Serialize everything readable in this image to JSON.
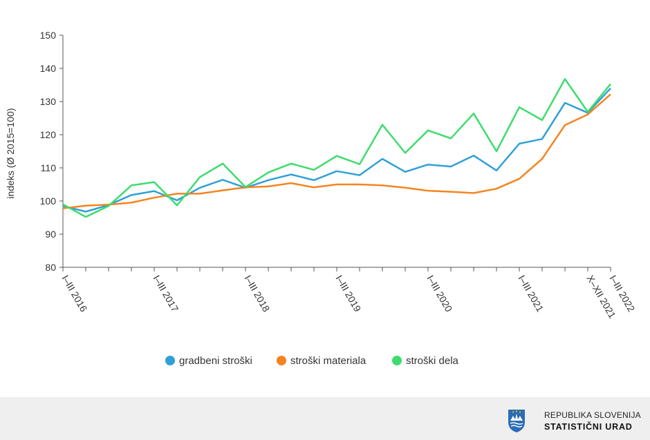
{
  "chart_data": {
    "type": "line",
    "ylabel": "indeks (Ø 2015=100)",
    "ylim": [
      80,
      150
    ],
    "yticks": [
      80,
      90,
      100,
      110,
      120,
      130,
      140,
      150
    ],
    "x_count": 25,
    "x_labels": [
      {
        "index": 0,
        "label": "I–III 2016"
      },
      {
        "index": 4,
        "label": "I–III 2017"
      },
      {
        "index": 8,
        "label": "I–III 2018"
      },
      {
        "index": 12,
        "label": "I–III 2019"
      },
      {
        "index": 16,
        "label": "I–III 2020"
      },
      {
        "index": 20,
        "label": "I–III 2021"
      },
      {
        "index": 23,
        "label": "X–XII 2021"
      },
      {
        "index": 24,
        "label": "I–III 2022"
      }
    ],
    "series": [
      {
        "name": "gradbeni stroški",
        "color": "#2ea0d6",
        "values": [
          98.5,
          96.8,
          98.8,
          101.8,
          103.0,
          100.2,
          104.0,
          106.4,
          104.0,
          106.3,
          108.0,
          106.3,
          109.0,
          107.8,
          112.7,
          108.8,
          111.0,
          110.4,
          113.7,
          109.2,
          117.3,
          118.7,
          129.6,
          126.6,
          134.0
        ]
      },
      {
        "name": "stroški materiala",
        "color": "#f5841f",
        "values": [
          97.8,
          98.6,
          98.9,
          99.5,
          101.0,
          102.2,
          102.2,
          103.2,
          104.1,
          104.4,
          105.4,
          104.1,
          105.0,
          105.0,
          104.7,
          104.0,
          103.1,
          102.8,
          102.4,
          103.7,
          106.7,
          112.7,
          122.9,
          126.1,
          132.2
        ]
      },
      {
        "name": "stroški dela",
        "color": "#3ddc6c",
        "values": [
          99.0,
          95.2,
          98.5,
          104.7,
          105.7,
          98.7,
          107.2,
          111.3,
          104.2,
          108.6,
          111.3,
          109.4,
          113.6,
          111.1,
          123.0,
          114.5,
          121.3,
          118.9,
          126.4,
          115.0,
          128.3,
          124.4,
          136.8,
          126.9,
          135.3
        ]
      }
    ]
  },
  "footer": {
    "org_line1": "REPUBLIKA SLOVENIJA",
    "org_line2": "STATISTIČNI URAD"
  }
}
